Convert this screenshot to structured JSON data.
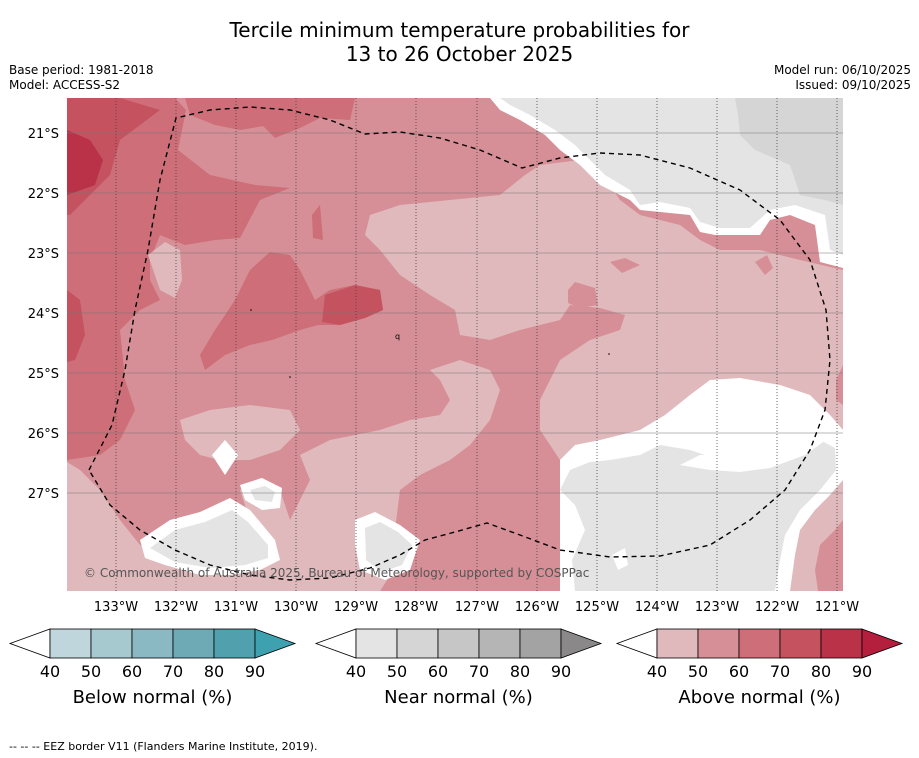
{
  "title": {
    "line1": "Tercile minimum temperature probabilities for",
    "line2": "13 to 26 October 2025"
  },
  "meta": {
    "base_period": "Base period: 1981-2018",
    "model": "Model: ACCESS-S2",
    "model_run": "Model run: 06/10/2025",
    "issued": "Issued: 09/10/2025"
  },
  "map": {
    "lat_ticks": [
      "21°S",
      "22°S",
      "23°S",
      "24°S",
      "25°S",
      "26°S",
      "27°S"
    ],
    "lon_ticks": [
      "133°W",
      "132°W",
      "131°W",
      "130°W",
      "129°W",
      "128°W",
      "127°W",
      "126°W",
      "125°W",
      "124°W",
      "123°W",
      "122°W",
      "121°W"
    ],
    "copyright": "© Commonwealth of Australia 2025, Bureau of Meteorology, supported by COSPPac",
    "colors": {
      "above_40": "#e0b9bd",
      "above_50": "#d68f96",
      "above_60": "#cd6e78",
      "above_70": "#c4535f",
      "above_80": "#b93248",
      "near_40": "#e4e4e4",
      "near_50": "#d5d5d5",
      "white": "#ffffff"
    }
  },
  "colorbars": [
    {
      "label": "Below normal (%)",
      "ticks": [
        "40",
        "50",
        "60",
        "70",
        "80",
        "90"
      ],
      "colors": [
        "#bfd6dc",
        "#a6c8cf",
        "#8ab8c3",
        "#6eaab6",
        "#50a0ae",
        "#3da1b0"
      ]
    },
    {
      "label": "Near normal (%)",
      "ticks": [
        "40",
        "50",
        "60",
        "70",
        "80",
        "90"
      ],
      "colors": [
        "#e4e4e4",
        "#d5d5d5",
        "#c6c6c6",
        "#b5b5b5",
        "#a3a3a3",
        "#8a8888"
      ]
    },
    {
      "label": "Above normal (%)",
      "ticks": [
        "40",
        "50",
        "60",
        "70",
        "80",
        "90"
      ],
      "colors": [
        "#e0b9bd",
        "#d68f96",
        "#cd6e78",
        "#c4535f",
        "#b93248",
        "#b51f3e"
      ]
    }
  ],
  "footnote": "-- -- -- EEZ border V11 (Flanders Marine Institute, 2019)."
}
